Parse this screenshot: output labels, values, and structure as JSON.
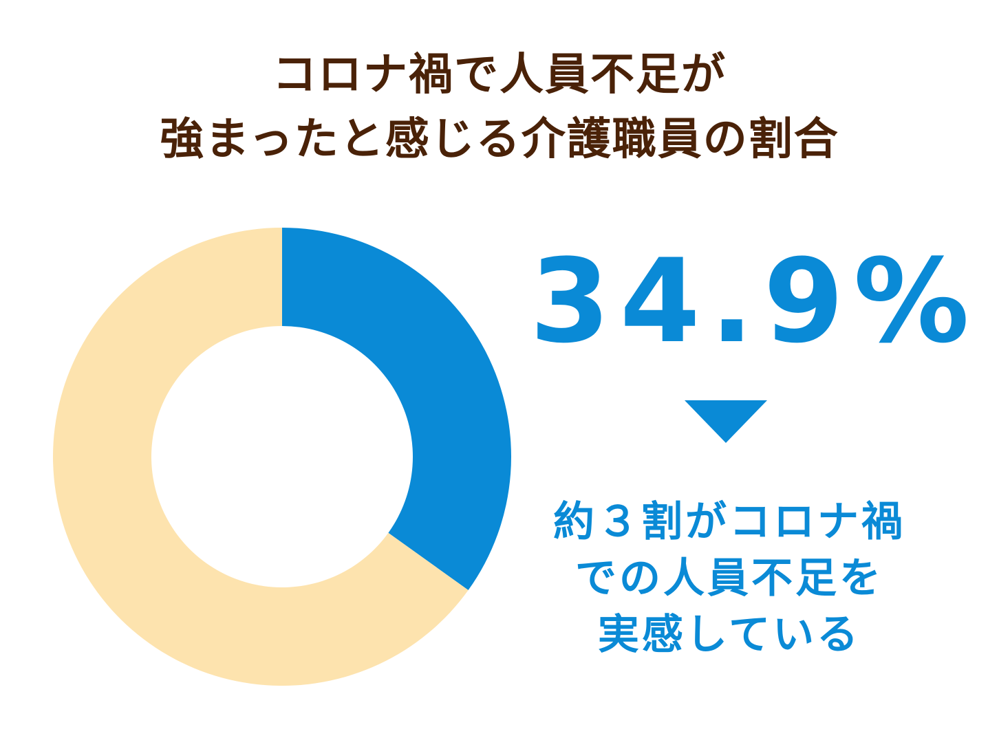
{
  "title": {
    "line1": "コロナ禍で人員不足が",
    "line2": "強まったと感じる介護職員の割合"
  },
  "highlight": {
    "value_text": "34.9%"
  },
  "caption": {
    "line1": "約３割がコロナ禍",
    "line2": "での人員不足を",
    "line3": "実感している"
  },
  "chart_data": {
    "type": "pie",
    "donut": true,
    "title": "コロナ禍で人員不足が強まったと感じる介護職員の割合",
    "slices": [
      {
        "value": 34.9,
        "color": "#0a8ad6"
      },
      {
        "value": 65.1,
        "color": "#fde3ae"
      }
    ],
    "start_angle": "top",
    "direction": "clockwise"
  },
  "colors": {
    "title": "#4a2208",
    "accent": "#0a8ad6",
    "remainder": "#fde3ae"
  }
}
